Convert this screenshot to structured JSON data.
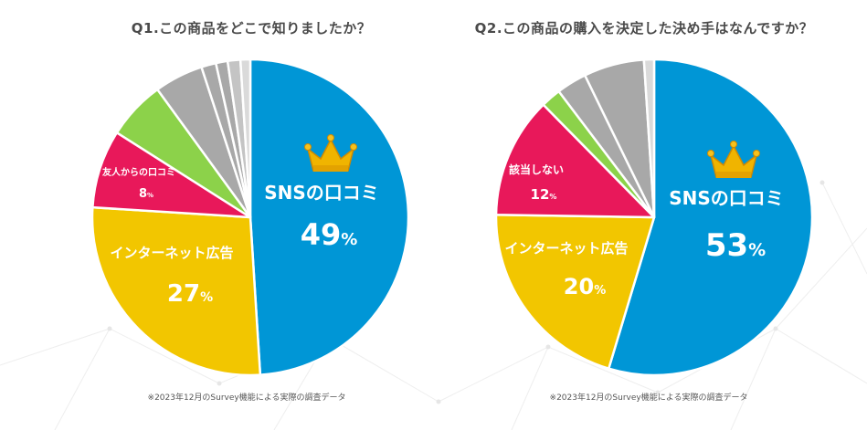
{
  "colors": {
    "sns": "#0096d6",
    "ad": "#f2c600",
    "friend": "#e8185a",
    "other_green": "#8cd24a",
    "other_gray": "#a8a8a8",
    "other_light": "#c4c4c4",
    "other_lighter": "#dadada",
    "crown": "#f0b400",
    "title": "#4a4a4a"
  },
  "icons": [
    "crown-icon"
  ],
  "chart_data": [
    {
      "type": "pie",
      "title": "Q1.この商品をどこで知りましたか？",
      "note": "※2023年12月のSurvey機能による実際の調査データ",
      "slices": [
        {
          "key": "sns",
          "label": "SNSの口コミ",
          "value": 49,
          "pct_text": "49",
          "unit": "%",
          "color": "#0096d6",
          "crown": true
        },
        {
          "key": "ad",
          "label": "インターネット広告",
          "value": 27,
          "pct_text": "27",
          "unit": "%",
          "color": "#f2c600"
        },
        {
          "key": "friend",
          "label": "友人からの口コミ",
          "value": 8,
          "pct_text": "8",
          "unit": "%",
          "color": "#e8185a"
        },
        {
          "key": "o1",
          "label": "",
          "value": 6,
          "color": "#8cd24a"
        },
        {
          "key": "o2",
          "label": "",
          "value": 5,
          "color": "#a8a8a8"
        },
        {
          "key": "o3",
          "label": "",
          "value": 1.5,
          "color": "#a8a8a8"
        },
        {
          "key": "o4",
          "label": "",
          "value": 1.2,
          "color": "#a8a8a8"
        },
        {
          "key": "o5",
          "label": "",
          "value": 1.3,
          "color": "#c4c4c4"
        },
        {
          "key": "o6",
          "label": "",
          "value": 1,
          "color": "#dadada"
        }
      ]
    },
    {
      "type": "pie",
      "title": "Q2.この商品の購入を決定した決め手はなんですか？",
      "note": "※2023年12月のSurvey機能による実際の調査データ",
      "slices": [
        {
          "key": "sns",
          "label": "SNSの口コミ",
          "value": 53,
          "pct_text": "53",
          "unit": "%",
          "color": "#0096d6",
          "crown": true
        },
        {
          "key": "ad",
          "label": "インターネット広告",
          "value": 20,
          "pct_text": "20",
          "unit": "%",
          "color": "#f2c600"
        },
        {
          "key": "decide",
          "label": "該当しない",
          "value": 12,
          "pct_text": "12",
          "unit": "%",
          "color": "#e8185a"
        },
        {
          "key": "o1",
          "label": "",
          "value": 2,
          "color": "#8cd24a"
        },
        {
          "key": "o2",
          "label": "",
          "value": 3,
          "color": "#a8a8a8"
        },
        {
          "key": "o3",
          "label": "",
          "value": 6,
          "color": "#a8a8a8"
        },
        {
          "key": "o4",
          "label": "",
          "value": 1,
          "color": "#dadada"
        }
      ]
    }
  ]
}
